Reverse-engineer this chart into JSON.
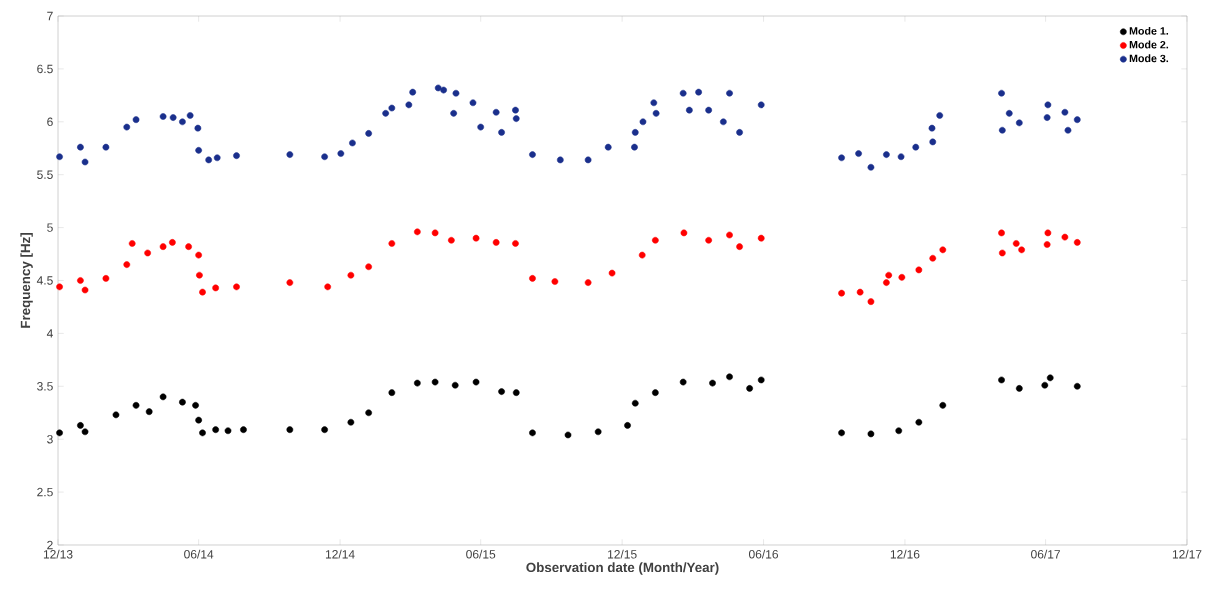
{
  "chart_data": {
    "type": "scatter",
    "xlabel": "Observation date (Month/Year)",
    "ylabel": "Frequency [Hz]",
    "xlim": [
      "2013-12-01",
      "2017-12-01"
    ],
    "ylim": [
      2,
      7
    ],
    "xticks": [
      {
        "value": "2013-12-01",
        "label": "12/13"
      },
      {
        "value": "2014-06-01",
        "label": "06/14"
      },
      {
        "value": "2014-12-01",
        "label": "12/14"
      },
      {
        "value": "2015-06-01",
        "label": "06/15"
      },
      {
        "value": "2015-12-01",
        "label": "12/15"
      },
      {
        "value": "2016-06-01",
        "label": "06/16"
      },
      {
        "value": "2016-12-01",
        "label": "12/16"
      },
      {
        "value": "2017-06-01",
        "label": "06/17"
      },
      {
        "value": "2017-12-01",
        "label": "12/17"
      }
    ],
    "yticks": [
      2,
      2.5,
      3,
      3.5,
      4,
      4.5,
      5,
      5.5,
      6,
      6.5,
      7
    ],
    "legend": "top right",
    "grid": false,
    "series": [
      {
        "name": "Mode 1.",
        "color": "#000000",
        "x": [
          "2013-12-03",
          "2013-12-30",
          "2014-01-05",
          "2014-02-14",
          "2014-03-12",
          "2014-03-29",
          "2014-04-16",
          "2014-05-11",
          "2014-05-28",
          "2014-06-01",
          "2014-06-06",
          "2014-06-23",
          "2014-07-09",
          "2014-07-29",
          "2014-09-27",
          "2014-11-11",
          "2014-12-15",
          "2015-01-07",
          "2015-02-06",
          "2015-03-11",
          "2015-04-03",
          "2015-04-29",
          "2015-05-26",
          "2015-06-28",
          "2015-07-17",
          "2015-08-07",
          "2015-09-22",
          "2015-10-31",
          "2015-12-08",
          "2015-12-18",
          "2016-01-13",
          "2016-02-18",
          "2016-03-27",
          "2016-04-18",
          "2016-05-14",
          "2016-05-29",
          "2016-09-10",
          "2016-10-18",
          "2016-11-23",
          "2016-12-19",
          "2017-01-19",
          "2017-04-05",
          "2017-04-28",
          "2017-05-31",
          "2017-06-07",
          "2017-07-12"
        ],
        "values": [
          3.06,
          3.13,
          3.07,
          3.23,
          3.32,
          3.26,
          3.4,
          3.35,
          3.32,
          3.18,
          3.06,
          3.09,
          3.08,
          3.09,
          3.09,
          3.09,
          3.16,
          3.25,
          3.44,
          3.53,
          3.54,
          3.51,
          3.54,
          3.45,
          3.44,
          3.06,
          3.04,
          3.07,
          3.13,
          3.34,
          3.44,
          3.54,
          3.53,
          3.59,
          3.48,
          3.56,
          3.06,
          3.05,
          3.08,
          3.16,
          3.32,
          3.56,
          3.48,
          3.51,
          3.58,
          3.5
        ]
      },
      {
        "name": "Mode 2.",
        "color": "#ff0000",
        "x": [
          "2013-12-03",
          "2013-12-30",
          "2014-01-05",
          "2014-02-01",
          "2014-02-28",
          "2014-03-07",
          "2014-03-27",
          "2014-04-16",
          "2014-04-28",
          "2014-05-19",
          "2014-06-01",
          "2014-06-02",
          "2014-06-06",
          "2014-06-23",
          "2014-07-20",
          "2014-09-27",
          "2014-11-15",
          "2014-12-15",
          "2015-01-07",
          "2015-02-06",
          "2015-03-11",
          "2015-04-03",
          "2015-04-24",
          "2015-05-26",
          "2015-06-21",
          "2015-07-16",
          "2015-08-07",
          "2015-09-05",
          "2015-10-18",
          "2015-11-18",
          "2015-12-27",
          "2016-01-13",
          "2016-02-19",
          "2016-03-22",
          "2016-04-18",
          "2016-05-01",
          "2016-05-29",
          "2016-09-10",
          "2016-10-04",
          "2016-10-18",
          "2016-11-07",
          "2016-11-10",
          "2016-11-27",
          "2016-12-19",
          "2017-01-06",
          "2017-01-19",
          "2017-04-05",
          "2017-04-06",
          "2017-04-24",
          "2017-05-01",
          "2017-06-03",
          "2017-06-04",
          "2017-06-26",
          "2017-07-12"
        ],
        "values": [
          4.44,
          4.5,
          4.41,
          4.52,
          4.65,
          4.85,
          4.76,
          4.82,
          4.86,
          4.82,
          4.74,
          4.55,
          4.39,
          4.43,
          4.44,
          4.48,
          4.44,
          4.55,
          4.63,
          4.85,
          4.96,
          4.95,
          4.88,
          4.9,
          4.86,
          4.85,
          4.52,
          4.49,
          4.48,
          4.57,
          4.74,
          4.88,
          4.95,
          4.88,
          4.93,
          4.82,
          4.9,
          4.38,
          4.39,
          4.3,
          4.48,
          4.55,
          4.53,
          4.6,
          4.71,
          4.79,
          4.95,
          4.76,
          4.85,
          4.79,
          4.84,
          4.95,
          4.91,
          4.86
        ]
      },
      {
        "name": "Mode 3.",
        "color": "#1a2f8c",
        "x": [
          "2013-12-03",
          "2013-12-30",
          "2014-01-05",
          "2014-02-01",
          "2014-02-28",
          "2014-03-12",
          "2014-04-16",
          "2014-04-29",
          "2014-05-11",
          "2014-05-21",
          "2014-05-31",
          "2014-06-01",
          "2014-06-14",
          "2014-06-25",
          "2014-07-20",
          "2014-09-27",
          "2014-11-11",
          "2014-12-02",
          "2014-12-17",
          "2015-01-07",
          "2015-01-29",
          "2015-02-06",
          "2015-02-28",
          "2015-03-05",
          "2015-04-07",
          "2015-04-14",
          "2015-04-27",
          "2015-04-30",
          "2015-05-22",
          "2015-06-01",
          "2015-06-21",
          "2015-06-28",
          "2015-07-16",
          "2015-07-17",
          "2015-08-07",
          "2015-09-12",
          "2015-10-18",
          "2015-11-13",
          "2015-12-17",
          "2015-12-18",
          "2015-12-28",
          "2016-01-11",
          "2016-01-14",
          "2016-02-18",
          "2016-02-26",
          "2016-03-09",
          "2016-03-22",
          "2016-04-10",
          "2016-04-18",
          "2016-05-01",
          "2016-05-29",
          "2016-09-10",
          "2016-10-02",
          "2016-10-18",
          "2016-11-07",
          "2016-11-26",
          "2016-12-15",
          "2017-01-05",
          "2017-01-06",
          "2017-01-15",
          "2017-04-05",
          "2017-04-06",
          "2017-04-15",
          "2017-04-28",
          "2017-06-03",
          "2017-06-04",
          "2017-06-26",
          "2017-06-30",
          "2017-07-12"
        ],
        "values": [
          5.67,
          5.76,
          5.62,
          5.76,
          5.95,
          6.02,
          6.05,
          6.04,
          6.0,
          6.06,
          5.94,
          5.73,
          5.64,
          5.66,
          5.68,
          5.69,
          5.67,
          5.7,
          5.8,
          5.89,
          6.08,
          6.13,
          6.16,
          6.28,
          6.32,
          6.3,
          6.08,
          6.27,
          6.18,
          5.95,
          6.09,
          5.9,
          6.11,
          6.03,
          5.69,
          5.64,
          5.64,
          5.76,
          5.76,
          5.9,
          6.0,
          6.18,
          6.08,
          6.27,
          6.11,
          6.28,
          6.11,
          6.0,
          6.27,
          5.9,
          6.16,
          5.66,
          5.7,
          5.57,
          5.69,
          5.67,
          5.76,
          5.94,
          5.81,
          6.06,
          6.27,
          5.92,
          6.08,
          5.99,
          6.04,
          6.16,
          6.09,
          5.92,
          6.02
        ]
      }
    ]
  }
}
